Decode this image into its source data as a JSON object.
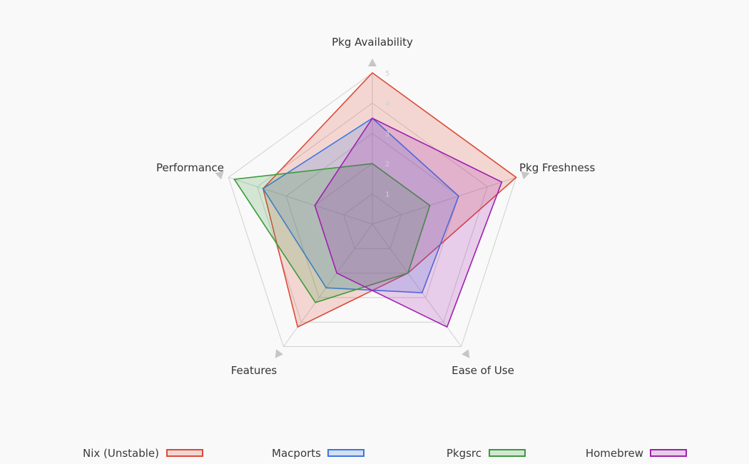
{
  "chart_data": {
    "type": "radar",
    "axes": [
      "Pkg Availability",
      "Pkg Freshness",
      "Ease of Use",
      "Features",
      "Performance"
    ],
    "scale": {
      "min": 0,
      "max": 5,
      "ticks": [
        1,
        2,
        3,
        4,
        5
      ]
    },
    "series": [
      {
        "name": "Nix (Unstable)",
        "color": "#dd4b39",
        "fill": "rgba(221,75,57,0.20)",
        "values": [
          5,
          5,
          2,
          4.2,
          3.8
        ]
      },
      {
        "name": "Macports",
        "color": "#3e77e0",
        "fill": "rgba(62,119,224,0.20)",
        "values": [
          3.5,
          3,
          2.8,
          2.6,
          3.8
        ]
      },
      {
        "name": "Pkgsrc",
        "color": "#3b9b3b",
        "fill": "rgba(59,155,59,0.20)",
        "values": [
          2,
          2,
          2,
          3.2,
          4.8
        ]
      },
      {
        "name": "Homebrew",
        "color": "#a020b0",
        "fill": "rgba(160,32,176,0.20)",
        "values": [
          3.5,
          4.5,
          4.2,
          2,
          2
        ]
      }
    ],
    "grid": true,
    "legend_position": "bottom"
  }
}
